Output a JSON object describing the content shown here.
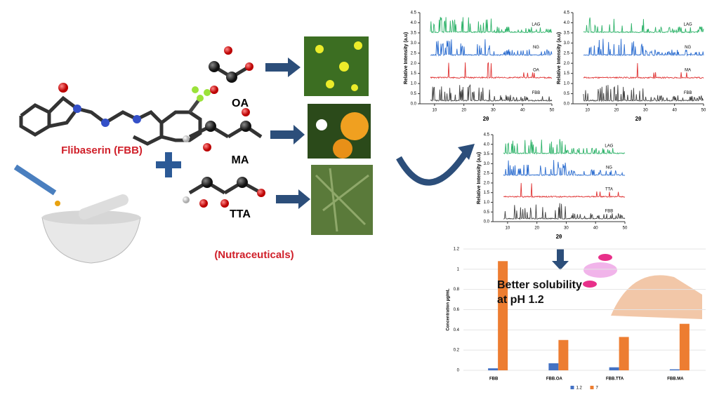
{
  "scheme": {
    "drug": "Flibaserin (FBB)",
    "coformers": [
      "OA",
      "MA",
      "TTA"
    ],
    "coformer_group": "(Nutraceuticals)"
  },
  "xrd_charts": [
    {
      "type": "xrd",
      "x_label": "2θ",
      "y_label": "Relative Intensity (a.u)",
      "xlim": [
        5,
        50
      ],
      "xticks": [
        10,
        20,
        30,
        40,
        50
      ],
      "ylim": [
        0,
        4.5
      ],
      "yticks": [
        {
          "value": 0,
          "label": "0.0"
        },
        0.5,
        {
          "value": 1,
          "label": "1.0"
        },
        1.5,
        {
          "value": 2,
          "label": "2.0"
        },
        2.5,
        {
          "value": 3,
          "label": "3.0"
        },
        3.5,
        {
          "value": 4,
          "label": "4.0"
        },
        4.5
      ],
      "series": [
        {
          "name": "LAG",
          "color": "#2fb36a"
        },
        {
          "name": "NG",
          "color": "#2f6fd0"
        },
        {
          "name": "OA",
          "color": "#e03535"
        },
        {
          "name": "FBB",
          "color": "#444444"
        }
      ]
    },
    {
      "type": "xrd",
      "x_label": "2θ",
      "y_label": "Relative Intensity (a.u)",
      "xlim": [
        5,
        50
      ],
      "xticks": [
        10,
        20,
        30,
        40,
        50
      ],
      "ylim": [
        0,
        4.5
      ],
      "yticks": [
        {
          "value": 0,
          "label": "0.0"
        },
        0.5,
        {
          "value": 1,
          "label": "1.0"
        },
        1.5,
        {
          "value": 2,
          "label": "2.0"
        },
        2.5,
        {
          "value": 3,
          "label": "3.0"
        },
        3.5,
        {
          "value": 4,
          "label": "4.0"
        },
        4.5
      ],
      "series": [
        {
          "name": "LAG",
          "color": "#2fb36a"
        },
        {
          "name": "NG",
          "color": "#2f6fd0"
        },
        {
          "name": "MA",
          "color": "#e03535"
        },
        {
          "name": "FBB",
          "color": "#444444"
        }
      ]
    },
    {
      "type": "xrd",
      "x_label": "2θ",
      "y_label": "Relative Intensity (a.u)",
      "xlim": [
        5,
        50
      ],
      "xticks": [
        10,
        20,
        30,
        40,
        50
      ],
      "ylim": [
        0,
        4.5
      ],
      "yticks": [
        {
          "value": 0,
          "label": "0.0"
        },
        0.5,
        {
          "value": 1,
          "label": "1.0"
        },
        1.5,
        {
          "value": 2,
          "label": "2.0"
        },
        2.5,
        {
          "value": 3,
          "label": "3.0"
        },
        3.5,
        {
          "value": 4,
          "label": "4.0"
        },
        4.5
      ],
      "series": [
        {
          "name": "LAG",
          "color": "#2fb36a"
        },
        {
          "name": "NG",
          "color": "#2f6fd0"
        },
        {
          "name": "TTA",
          "color": "#e03535"
        },
        {
          "name": "FBB",
          "color": "#444444"
        }
      ]
    }
  ],
  "solubility": {
    "type": "bar",
    "callout": "Better solubility at pH 1.2",
    "y_label": "Concentration µg/mL",
    "categories": [
      "FBB",
      "FBB.OA",
      "FBB.TTA",
      "FBB.MA"
    ],
    "series": [
      {
        "name": "1.2",
        "color": "#4472c4",
        "values": [
          0.02,
          0.07,
          0.03,
          0.01
        ]
      },
      {
        "name": "7",
        "color": "#ed7d31",
        "values": [
          1.08,
          0.3,
          0.33,
          0.46
        ]
      }
    ],
    "ylim": [
      0,
      1.2
    ],
    "yticks": [
      0,
      0.2,
      0.4,
      0.6,
      0.8,
      1,
      1.2
    ],
    "grid": true
  }
}
